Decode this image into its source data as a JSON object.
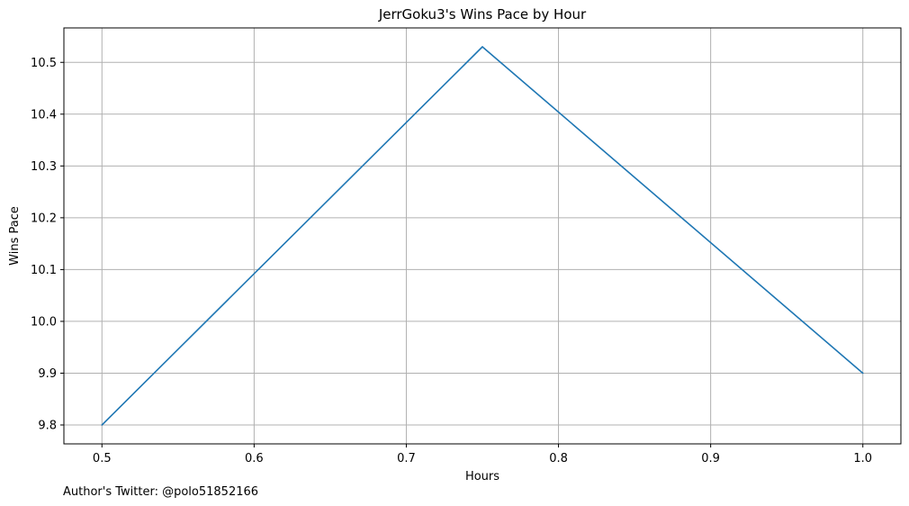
{
  "chart_data": {
    "type": "line",
    "title": "JerrGoku3's Wins Pace by Hour",
    "xlabel": "Hours",
    "ylabel": "Wins Pace",
    "x": [
      0.5,
      0.75,
      1.0
    ],
    "series": [
      {
        "values": [
          9.8,
          10.53,
          9.9
        ],
        "color": "#1f77b4"
      }
    ],
    "xticks": [
      "0.5",
      "0.6",
      "0.7",
      "0.8",
      "0.9",
      "1.0"
    ],
    "yticks": [
      "9.8",
      "9.9",
      "10.0",
      "10.1",
      "10.2",
      "10.3",
      "10.4",
      "10.5"
    ],
    "xlim": [
      0.475,
      1.025
    ],
    "ylim": [
      9.7635,
      10.5665
    ],
    "grid": true
  },
  "footnote": "Author's Twitter: @polo51852166"
}
